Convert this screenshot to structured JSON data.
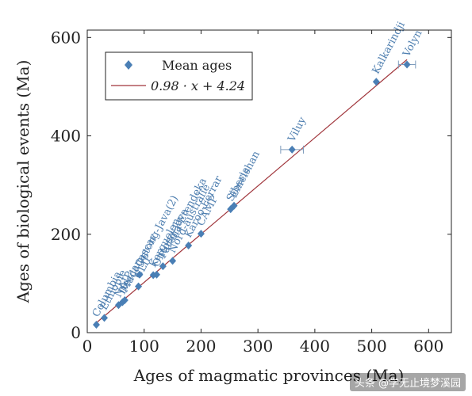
{
  "chart_data": {
    "type": "scatter",
    "xlabel": "Ages of magmatic provinces (Ma)",
    "ylabel": "Ages of biological events (Ma)",
    "xlim": [
      0,
      640
    ],
    "ylim": [
      0,
      615
    ],
    "xticks": [
      "0",
      "100",
      "200",
      "300",
      "400",
      "500",
      "600"
    ],
    "yticks": [
      "0",
      "200",
      "400",
      "600"
    ],
    "grid": false,
    "legend_position": "top-left",
    "series": [
      {
        "name": "Mean ages",
        "marker": "diamond",
        "color": "#4a7fb5",
        "points": [
          {
            "label": "Columbia",
            "x": 16,
            "y": 16
          },
          {
            "label": "Ethiopie",
            "x": 30,
            "y": 30
          },
          {
            "label": "NAIP",
            "x": 55,
            "y": 56
          },
          {
            "label": "Deccan",
            "x": 62,
            "y": 62
          },
          {
            "label": "Madagascar",
            "x": 66,
            "y": 66
          },
          {
            "label": "CLIP",
            "x": 90,
            "y": 94
          },
          {
            "label": "Ontong-Java(2)",
            "x": 92,
            "y": 118
          },
          {
            "label": "Kerguelen",
            "x": 116,
            "y": 117
          },
          {
            "label": "Ontong-Java",
            "x": 122,
            "y": 118
          },
          {
            "label": "Parana-Etendeka",
            "x": 133,
            "y": 135
          },
          {
            "label": "Nord-australie",
            "x": 150,
            "y": 146
          },
          {
            "label": "Karoo-Ferrar",
            "x": 178,
            "y": 177
          },
          {
            "label": "CAMP",
            "x": 200,
            "y": 201
          },
          {
            "label": "Siberia",
            "x": 252,
            "y": 251
          },
          {
            "label": "Emeishan",
            "x": 258,
            "y": 258
          },
          {
            "label": "Viluy",
            "x": 360,
            "y": 372,
            "xerr": 20
          },
          {
            "label": "Kalkarindji",
            "x": 508,
            "y": 510
          },
          {
            "label": "Volyn",
            "x": 562,
            "y": 545,
            "xerr": 15
          }
        ]
      }
    ],
    "fit": {
      "name": "0.98 · x + 4.24",
      "slope": 0.98,
      "intercept": 4.24,
      "x_range": [
        16,
        562
      ],
      "color": "#a0353b"
    }
  },
  "watermark": "头条 @学无止境梦溪园"
}
